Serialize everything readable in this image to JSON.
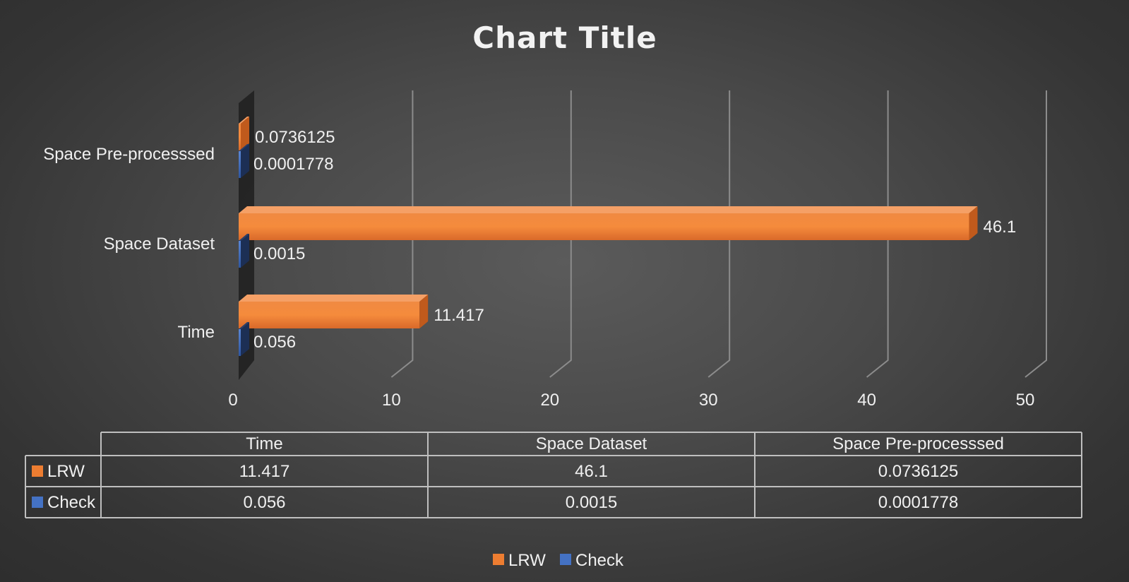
{
  "chart_data": {
    "type": "bar",
    "orientation": "horizontal",
    "title": "Chart  Title",
    "categories": [
      "Time",
      "Space Dataset",
      "Space Pre-processsed"
    ],
    "series": [
      {
        "name": "LRW",
        "values": [
          11.417,
          46.1,
          0.0736125
        ],
        "labels": [
          "11.417",
          "46.1",
          "0.0736125"
        ]
      },
      {
        "name": "Check",
        "values": [
          0.056,
          0.0015,
          0.0001778
        ],
        "labels": [
          "0.056",
          "0.0015",
          "0.0001778"
        ]
      }
    ],
    "xticks": [
      "0",
      "10",
      "20",
      "30",
      "40",
      "50"
    ],
    "xlim": [
      0,
      50
    ],
    "grid": true,
    "legend_position": "bottom",
    "data_table": true
  },
  "colors": {
    "lrw": "#ed7d31",
    "check": "#4472c4",
    "background": "#404040",
    "grid": "#8c8c8c"
  }
}
